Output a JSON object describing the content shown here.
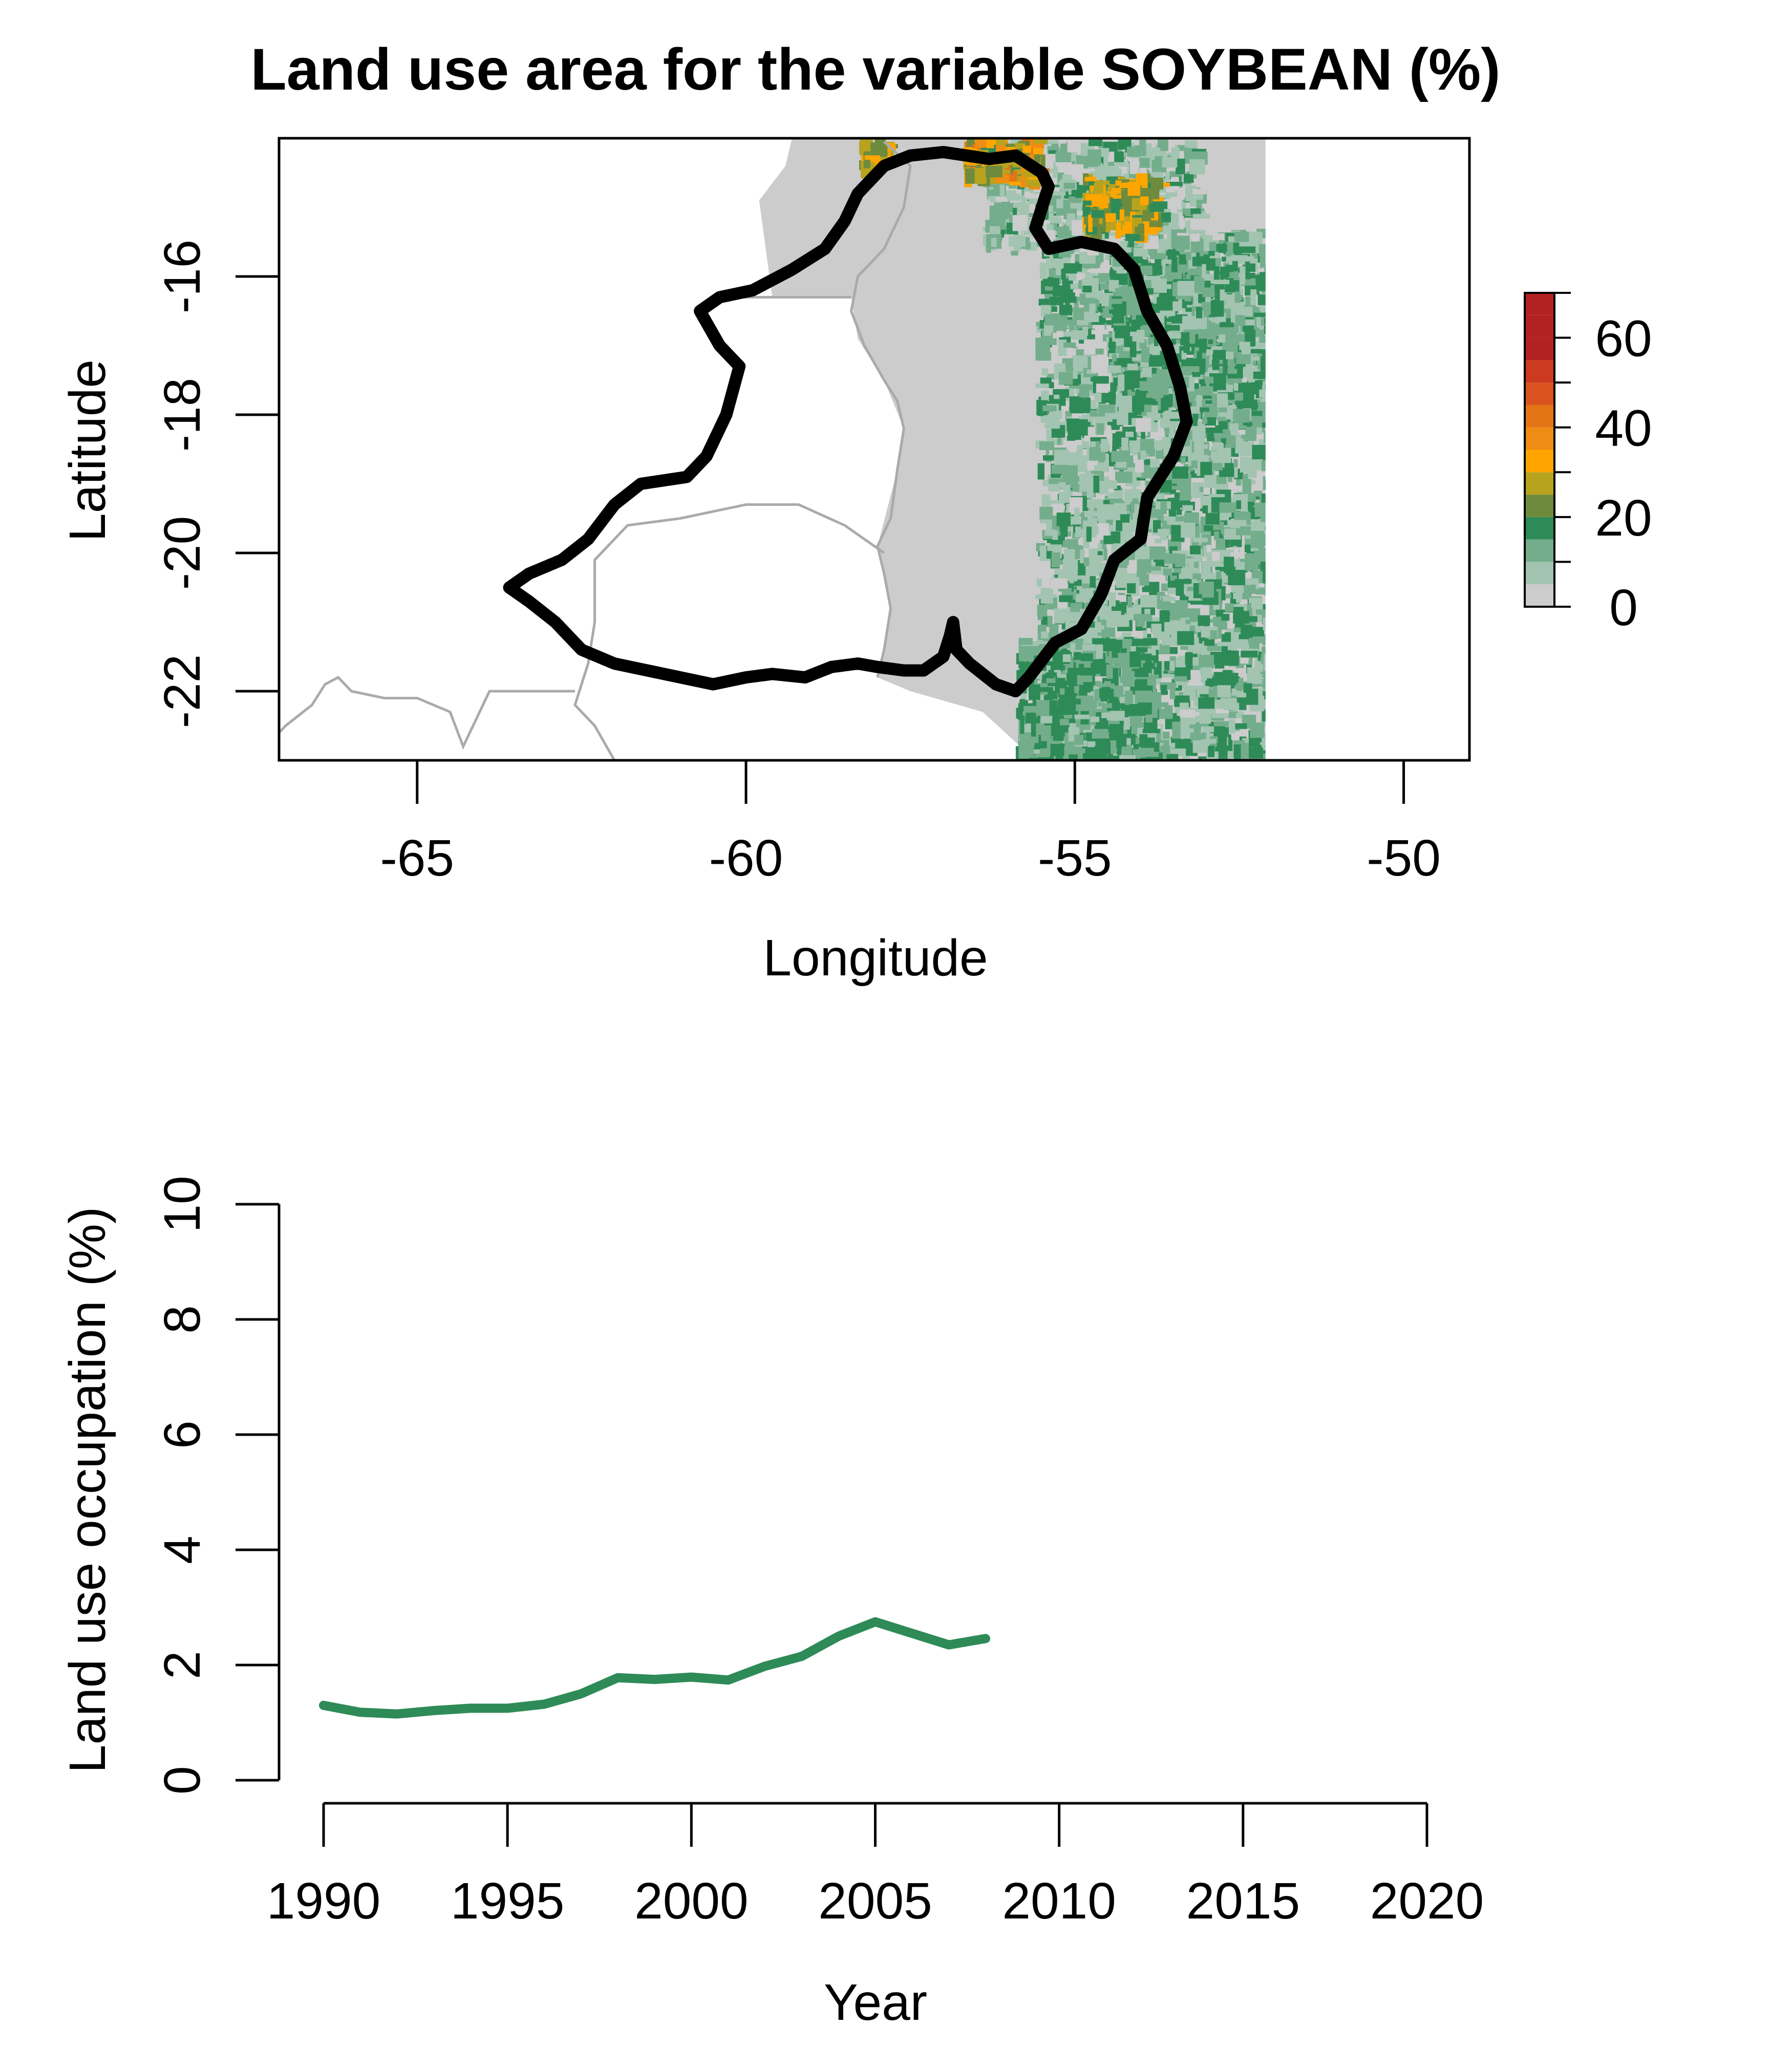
{
  "title": "Land use area for the variable SOYBEAN (%)",
  "colors": {
    "line": "#2e8b57",
    "background_land": "#cccccc",
    "outline": "#000000",
    "border": "#aaaaaa"
  },
  "chart_data": [
    {
      "type": "map",
      "title": "Land use area for the variable SOYBEAN (%)",
      "xlabel": "Longitude",
      "ylabel": "Latitude",
      "xlim": [
        -67.1,
        -49.0
      ],
      "ylim": [
        -23.0,
        -14.0
      ],
      "x_ticks": [
        "-65",
        "-60",
        "-55",
        "-50"
      ],
      "x_tick_values": [
        -65,
        -60,
        -55,
        -50
      ],
      "y_ticks": [
        "-16",
        "-18",
        "-20",
        "-22"
      ],
      "y_tick_values": [
        -16,
        -18,
        -20,
        -22
      ],
      "raster_east_edge": -52.1,
      "raster_west_edge": -58.0,
      "legend": {
        "type": "colorbar",
        "placement": "right",
        "range": [
          0,
          70
        ],
        "breaks": [
          0,
          5,
          10,
          15,
          20,
          25,
          30,
          35,
          40,
          45,
          50,
          55,
          60,
          65,
          70
        ],
        "labels": [
          "0",
          "20",
          "40",
          "60"
        ],
        "label_values": [
          0,
          20,
          40,
          60
        ],
        "colors": [
          "#cccccc",
          "#a2c4b1",
          "#74ad8c",
          "#2e8b57",
          "#6e8b3d",
          "#b8a31f",
          "#ffa500",
          "#ee8c13",
          "#e57417",
          "#d9531e",
          "#cc3a1f",
          "#b22222",
          "#b22222",
          "#b22222"
        ]
      },
      "watershed_outline": [
        [
          -57.9,
          -14.4
        ],
        [
          -57.5,
          -14.25
        ],
        [
          -57.0,
          -14.2
        ],
        [
          -56.3,
          -14.3
        ],
        [
          -55.9,
          -14.25
        ],
        [
          -55.5,
          -14.5
        ],
        [
          -55.4,
          -14.7
        ],
        [
          -55.5,
          -15.0
        ],
        [
          -55.6,
          -15.3
        ],
        [
          -55.4,
          -15.6
        ],
        [
          -54.9,
          -15.5
        ],
        [
          -54.4,
          -15.6
        ],
        [
          -54.1,
          -15.9
        ],
        [
          -53.9,
          -16.5
        ],
        [
          -53.6,
          -17.0
        ],
        [
          -53.4,
          -17.6
        ],
        [
          -53.3,
          -18.1
        ],
        [
          -53.5,
          -18.6
        ],
        [
          -53.9,
          -19.2
        ],
        [
          -54.0,
          -19.8
        ],
        [
          -54.4,
          -20.1
        ],
        [
          -54.6,
          -20.6
        ],
        [
          -54.9,
          -21.1
        ],
        [
          -55.3,
          -21.3
        ],
        [
          -55.7,
          -21.8
        ],
        [
          -55.9,
          -22.0
        ],
        [
          -56.2,
          -21.9
        ],
        [
          -56.6,
          -21.6
        ],
        [
          -56.8,
          -21.4
        ],
        [
          -56.85,
          -21.0
        ],
        [
          -56.9,
          -21.2
        ],
        [
          -57.0,
          -21.5
        ],
        [
          -57.3,
          -21.7
        ],
        [
          -57.6,
          -21.7
        ],
        [
          -58.0,
          -21.65
        ],
        [
          -58.3,
          -21.6
        ],
        [
          -58.7,
          -21.65
        ],
        [
          -59.1,
          -21.8
        ],
        [
          -59.6,
          -21.75
        ],
        [
          -60.0,
          -21.8
        ],
        [
          -60.5,
          -21.9
        ],
        [
          -61.0,
          -21.8
        ],
        [
          -61.5,
          -21.7
        ],
        [
          -62.0,
          -21.6
        ],
        [
          -62.5,
          -21.4
        ],
        [
          -62.9,
          -21.0
        ],
        [
          -63.3,
          -20.7
        ],
        [
          -63.6,
          -20.5
        ],
        [
          -63.3,
          -20.3
        ],
        [
          -62.8,
          -20.1
        ],
        [
          -62.4,
          -19.8
        ],
        [
          -62.0,
          -19.3
        ],
        [
          -61.6,
          -19.0
        ],
        [
          -60.9,
          -18.9
        ],
        [
          -60.6,
          -18.6
        ],
        [
          -60.3,
          -18.0
        ],
        [
          -60.1,
          -17.3
        ],
        [
          -60.4,
          -17.0
        ],
        [
          -60.7,
          -16.5
        ],
        [
          -60.4,
          -16.3
        ],
        [
          -59.9,
          -16.2
        ],
        [
          -59.3,
          -15.9
        ],
        [
          -58.8,
          -15.6
        ],
        [
          -58.5,
          -15.2
        ],
        [
          -58.3,
          -14.8
        ],
        [
          -57.9,
          -14.4
        ]
      ],
      "country_borders": [
        [
          [
            -57.9,
            -14.05
          ],
          [
            -57.5,
            -14.4
          ],
          [
            -57.6,
            -15.0
          ],
          [
            -57.9,
            -15.6
          ],
          [
            -58.3,
            -16.0
          ],
          [
            -58.4,
            -16.5
          ],
          [
            -58.2,
            -17.0
          ],
          [
            -57.9,
            -17.5
          ],
          [
            -57.7,
            -17.8
          ],
          [
            -57.6,
            -18.2
          ],
          [
            -57.7,
            -18.8
          ],
          [
            -57.8,
            -19.5
          ],
          [
            -58.0,
            -19.9
          ],
          [
            -57.9,
            -20.3
          ],
          [
            -57.8,
            -20.8
          ],
          [
            -57.9,
            -21.4
          ],
          [
            -58.0,
            -21.8
          ]
        ],
        [
          [
            -60.2,
            -16.3
          ],
          [
            -59.6,
            -16.3
          ],
          [
            -58.4,
            -16.3
          ]
        ],
        [
          [
            -57.9,
            -20.0
          ],
          [
            -58.5,
            -19.6
          ],
          [
            -59.2,
            -19.3
          ],
          [
            -60.0,
            -19.3
          ],
          [
            -61.0,
            -19.5
          ],
          [
            -61.8,
            -19.6
          ],
          [
            -62.3,
            -20.1
          ],
          [
            -62.3,
            -20.6
          ],
          [
            -62.3,
            -21.0
          ],
          [
            -62.4,
            -21.6
          ],
          [
            -62.6,
            -22.2
          ],
          [
            -62.3,
            -22.5
          ],
          [
            -62.0,
            -23.0
          ]
        ],
        [
          [
            -62.6,
            -22.0
          ],
          [
            -63.4,
            -22.0
          ],
          [
            -63.9,
            -22.0
          ],
          [
            -64.3,
            -22.8
          ],
          [
            -64.5,
            -22.3
          ],
          [
            -65.0,
            -22.1
          ],
          [
            -65.5,
            -22.1
          ],
          [
            -66.0,
            -22.0
          ],
          [
            -66.2,
            -21.8
          ],
          [
            -66.4,
            -21.9
          ],
          [
            -66.6,
            -22.2
          ],
          [
            -67.0,
            -22.5
          ],
          [
            -67.1,
            -22.6
          ]
        ]
      ]
    },
    {
      "type": "line",
      "xlabel": "Year",
      "ylabel": "Land use occupation (%)",
      "xlim": [
        1990,
        2020
      ],
      "ylim": [
        0,
        10
      ],
      "x_ticks": [
        "1990",
        "1995",
        "2000",
        "2005",
        "2010",
        "2015",
        "2020"
      ],
      "x_tick_values": [
        1990,
        1995,
        2000,
        2005,
        2010,
        2015,
        2020
      ],
      "y_ticks": [
        "0",
        "2",
        "4",
        "6",
        "8",
        "10"
      ],
      "y_tick_values": [
        0,
        2,
        4,
        6,
        8,
        10
      ],
      "grid": false,
      "x": [
        1990,
        1991,
        1992,
        1993,
        1994,
        1995,
        1996,
        1997,
        1998,
        1999,
        2000,
        2001,
        2002,
        2003,
        2004,
        2005,
        2006,
        2007,
        2008
      ],
      "values": [
        1.3,
        1.18,
        1.15,
        1.21,
        1.25,
        1.25,
        1.32,
        1.5,
        1.78,
        1.75,
        1.79,
        1.74,
        1.98,
        2.15,
        2.5,
        2.75,
        2.55,
        2.35,
        2.46
      ],
      "color": "#2e8b57"
    }
  ]
}
